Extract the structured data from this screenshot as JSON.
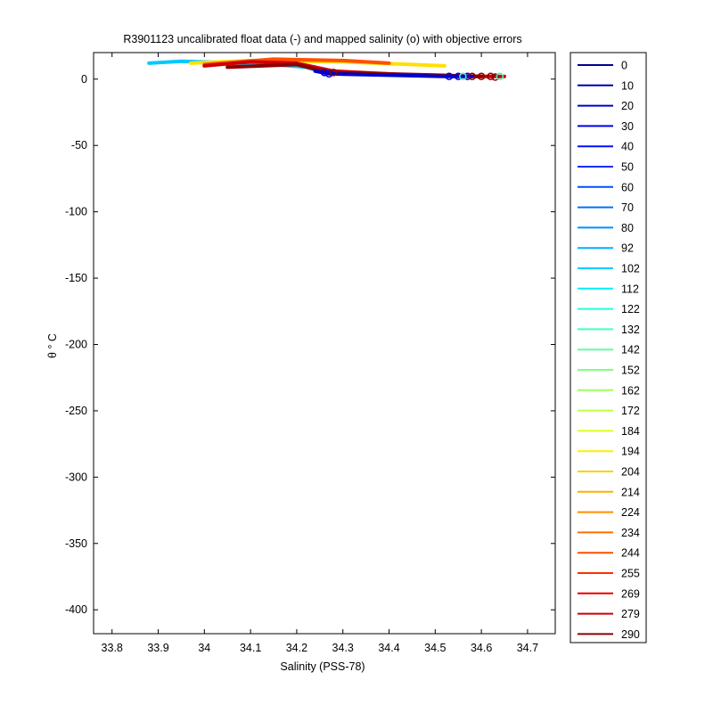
{
  "chart_data": {
    "type": "line",
    "title": "R3901123 uncalibrated float data (-) and mapped salinity (o) with objective errors",
    "xlabel": "Salinity (PSS-78)",
    "ylabel": "θ ° C",
    "xlim": [
      33.76,
      34.76
    ],
    "ylim": [
      -418,
      20
    ],
    "xticks": [
      33.8,
      33.9,
      34,
      34.1,
      34.2,
      34.3,
      34.4,
      34.5,
      34.6,
      34.7
    ],
    "xtick_labels": [
      "33.8",
      "33.9",
      "34",
      "34.1",
      "34.2",
      "34.3",
      "34.4",
      "34.5",
      "34.6",
      "34.7"
    ],
    "yticks": [
      0,
      -50,
      -100,
      -150,
      -200,
      -250,
      -300,
      -350,
      -400
    ],
    "ytick_labels": [
      "0",
      "-50",
      "-100",
      "-150",
      "-200",
      "-250",
      "-300",
      "-350",
      "-400"
    ],
    "grid": false,
    "legend_position": "outside-right",
    "legend_labels": [
      "0",
      "10",
      "20",
      "30",
      "40",
      "50",
      "60",
      "70",
      "80",
      "92",
      "102",
      "112",
      "122",
      "132",
      "142",
      "152",
      "162",
      "172",
      "184",
      "194",
      "204",
      "214",
      "224",
      "234",
      "244",
      "255",
      "269",
      "279",
      "290"
    ],
    "legend_colors": [
      "#00008f",
      "#0000af",
      "#0000cf",
      "#0000ef",
      "#0010ff",
      "#0030ff",
      "#0050ff",
      "#0070ff",
      "#0090ff",
      "#00b0ff",
      "#00d0ff",
      "#00f0ff",
      "#20ffdf",
      "#40ffbf",
      "#60ff9f",
      "#80ff80",
      "#a0ff60",
      "#c0ff40",
      "#e0ff20",
      "#ffef00",
      "#ffcf00",
      "#ffaf00",
      "#ff8f00",
      "#ff6f00",
      "#ff4f00",
      "#ff2f00",
      "#ef0000",
      "#cf0000",
      "#8f0000"
    ],
    "series": [
      {
        "color": "#00c8ff",
        "values": [
          [
            33.88,
            12
          ],
          [
            33.95,
            13.5
          ],
          [
            34.05,
            12.5
          ],
          [
            34.15,
            11
          ],
          [
            34.22,
            9
          ],
          [
            34.26,
            5
          ]
        ]
      },
      {
        "color": "#ffe000",
        "values": [
          [
            33.97,
            12
          ],
          [
            34.1,
            14
          ],
          [
            34.3,
            13
          ],
          [
            34.45,
            11
          ],
          [
            34.52,
            10
          ]
        ]
      },
      {
        "color": "#ff5000",
        "values": [
          [
            34.0,
            11
          ],
          [
            34.15,
            15
          ],
          [
            34.3,
            14
          ],
          [
            34.4,
            12
          ]
        ]
      },
      {
        "color": "#cf0000",
        "values": [
          [
            34.0,
            10
          ],
          [
            34.1,
            13
          ],
          [
            34.2,
            12
          ],
          [
            34.28,
            6
          ],
          [
            34.45,
            3
          ],
          [
            34.55,
            2
          ],
          [
            34.65,
            2
          ]
        ]
      },
      {
        "color": "#8f0000",
        "values": [
          [
            34.05,
            9
          ],
          [
            34.2,
            11
          ],
          [
            34.27,
            5
          ],
          [
            34.5,
            3
          ],
          [
            34.6,
            2
          ]
        ]
      },
      {
        "color": "#0000cf",
        "values": [
          [
            34.24,
            6
          ],
          [
            34.27,
            4
          ],
          [
            34.52,
            2
          ],
          [
            34.58,
            2
          ]
        ]
      }
    ],
    "mapped_points": [
      {
        "color": "#0000cf",
        "values": [
          [
            34.26,
            5
          ],
          [
            34.27,
            4
          ],
          [
            34.53,
            2
          ],
          [
            34.55,
            2
          ],
          [
            34.57,
            2
          ]
        ]
      },
      {
        "color": "#8f0000",
        "values": [
          [
            34.28,
            5
          ],
          [
            34.58,
            2
          ],
          [
            34.6,
            2
          ],
          [
            34.62,
            2
          ],
          [
            34.63,
            1.5
          ]
        ]
      },
      {
        "color": "#40ffbf",
        "values": [
          [
            34.56,
            2
          ],
          [
            34.64,
            2
          ]
        ]
      }
    ]
  }
}
